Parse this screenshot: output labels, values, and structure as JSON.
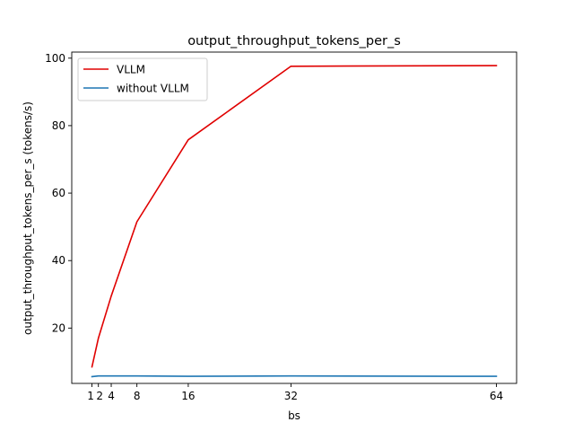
{
  "chart_data": {
    "type": "line",
    "title": "output_throughput_tokens_per_s",
    "xlabel": "bs",
    "ylabel": "output_throughput_tokens_per_s (tokens/s)",
    "x": [
      1,
      2,
      4,
      8,
      16,
      32,
      64
    ],
    "xticks": [
      1,
      2,
      4,
      8,
      16,
      32,
      64
    ],
    "yticks": [
      20,
      40,
      60,
      80,
      100
    ],
    "xlim": [
      -2.15,
      67.15
    ],
    "ylim": [
      3.6,
      101.8
    ],
    "grid": false,
    "legend_position": "top-left",
    "series": [
      {
        "name": "VLLM",
        "color": "#e00000",
        "values": [
          8.5,
          17.0,
          29.5,
          51.5,
          75.8,
          97.6,
          97.8
        ]
      },
      {
        "name": "without VLLM",
        "color": "#1f77b4",
        "values": [
          5.6,
          5.8,
          5.8,
          5.8,
          5.7,
          5.8,
          5.7
        ]
      }
    ]
  }
}
